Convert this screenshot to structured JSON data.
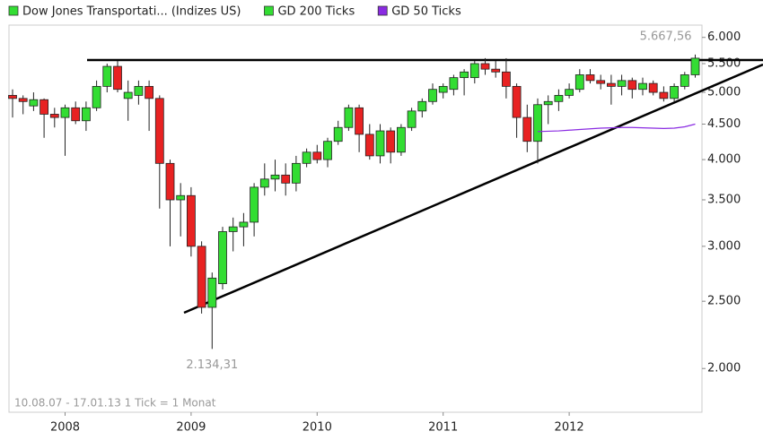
{
  "chart_data": {
    "type": "candlestick",
    "note": "10.08.07 - 17.01.13   1 Tick = 1 Monat",
    "log_scale": true,
    "ylim": [
      1730,
      6250
    ],
    "yticks": [
      {
        "value": 2000,
        "label": "2.000"
      },
      {
        "value": 2500,
        "label": "2.500"
      },
      {
        "value": 3000,
        "label": "3.000"
      },
      {
        "value": 3500,
        "label": "3.500"
      },
      {
        "value": 4000,
        "label": "4.000"
      },
      {
        "value": 4500,
        "label": "4.500"
      },
      {
        "value": 5000,
        "label": "5.000"
      },
      {
        "value": 5500,
        "label": "5.500"
      },
      {
        "value": 6000,
        "label": "6.000"
      }
    ],
    "categories": [
      null,
      null,
      null,
      null,
      null,
      "2008",
      null,
      null,
      null,
      null,
      null,
      null,
      null,
      null,
      null,
      null,
      null,
      "2009",
      null,
      null,
      null,
      null,
      null,
      null,
      null,
      null,
      null,
      null,
      null,
      "2010",
      null,
      null,
      null,
      null,
      null,
      null,
      null,
      null,
      null,
      null,
      null,
      "2011",
      null,
      null,
      null,
      null,
      null,
      null,
      null,
      null,
      null,
      null,
      null,
      "2012",
      null,
      null,
      null,
      null,
      null,
      null,
      null,
      null,
      null,
      null,
      null,
      null
    ],
    "series": [
      {
        "name": "Dow Jones Transportati... (Indizes US)",
        "type": "candlestick",
        "color": "#33dd33",
        "up_color": "#33dd33",
        "down_color": "#e82222",
        "open": [
          4950,
          4900,
          4780,
          4880,
          4650,
          4600,
          4750,
          4550,
          4750,
          5100,
          5450,
          4900,
          4950,
          5100,
          4900,
          3950,
          3500,
          3550,
          3000,
          2450,
          2650,
          3150,
          3200,
          3250,
          3650,
          3750,
          3800,
          3700,
          3950,
          4100,
          4000,
          4250,
          4450,
          4750,
          4350,
          4050,
          4400,
          4100,
          4450,
          4700,
          4850,
          5000,
          5050,
          5250,
          5250,
          5500,
          5400,
          5350,
          5100,
          4600,
          4250,
          4800,
          4850,
          4950,
          5050,
          5300,
          5200,
          5150,
          5100,
          5200,
          5050,
          5150,
          5000,
          4900,
          5100,
          5300
        ],
        "high": [
          5050,
          4950,
          5000,
          4900,
          4750,
          4800,
          4850,
          4850,
          5200,
          5500,
          5550,
          5200,
          5200,
          5200,
          4950,
          4000,
          3700,
          3650,
          3050,
          2750,
          3200,
          3300,
          3350,
          3700,
          3950,
          4000,
          3950,
          4050,
          4150,
          4200,
          4300,
          4550,
          4800,
          4800,
          4500,
          4500,
          4450,
          4500,
          4750,
          4900,
          5150,
          5150,
          5300,
          5400,
          5550,
          5600,
          5550,
          5600,
          5150,
          4800,
          4900,
          4950,
          5050,
          5150,
          5400,
          5400,
          5300,
          5300,
          5300,
          5250,
          5250,
          5200,
          5100,
          5150,
          5350,
          5667.56
        ],
        "low": [
          4600,
          4650,
          4700,
          4300,
          4450,
          4050,
          4500,
          4400,
          4700,
          5000,
          5000,
          4550,
          4800,
          4400,
          3400,
          3000,
          3100,
          2900,
          2400,
          2134.31,
          2600,
          2950,
          3000,
          3100,
          3550,
          3600,
          3550,
          3600,
          3900,
          3950,
          3900,
          4200,
          4400,
          4100,
          4000,
          3950,
          3950,
          4050,
          4400,
          4600,
          4800,
          4900,
          4950,
          4950,
          5150,
          5300,
          5250,
          4900,
          4300,
          4100,
          3950,
          4500,
          4700,
          4900,
          5000,
          5150,
          5050,
          4800,
          4950,
          4900,
          4950,
          4950,
          4850,
          4850,
          5050,
          5250
        ],
        "close": [
          4900,
          4850,
          4880,
          4650,
          4600,
          4750,
          4550,
          4750,
          5100,
          5450,
          5050,
          5000,
          5100,
          4900,
          3950,
          3500,
          3550,
          3000,
          2450,
          2700,
          3150,
          3200,
          3250,
          3650,
          3750,
          3800,
          3700,
          3950,
          4100,
          4000,
          4250,
          4450,
          4750,
          4350,
          4050,
          4400,
          4100,
          4450,
          4700,
          4850,
          5050,
          5100,
          5250,
          5350,
          5500,
          5400,
          5350,
          5100,
          4600,
          4250,
          4800,
          4850,
          4950,
          5050,
          5300,
          5200,
          5150,
          5100,
          5200,
          5050,
          5150,
          5000,
          4900,
          5100,
          5300,
          5600
        ]
      },
      {
        "name": "GD 200 Ticks",
        "type": "line",
        "color": "#33dd33",
        "values": [
          null,
          null,
          null,
          null,
          null,
          null,
          null,
          null,
          null,
          null,
          null,
          null,
          null,
          null,
          null,
          null,
          null,
          null,
          null,
          null,
          null,
          null,
          null,
          null,
          null,
          null,
          null,
          null,
          null,
          null,
          null,
          null,
          null,
          null,
          null,
          null,
          null,
          null,
          null,
          null,
          null,
          null,
          null,
          null,
          null,
          null,
          null,
          null,
          null,
          null,
          null,
          null,
          null,
          null,
          null,
          null,
          null,
          null,
          null,
          null,
          null,
          null,
          null,
          null,
          null,
          null
        ]
      },
      {
        "name": "GD 50 Ticks",
        "type": "line",
        "color": "#8a2be2",
        "values": [
          null,
          null,
          null,
          null,
          null,
          null,
          null,
          null,
          null,
          null,
          null,
          null,
          null,
          null,
          null,
          null,
          null,
          null,
          null,
          null,
          null,
          null,
          null,
          null,
          null,
          null,
          null,
          null,
          null,
          null,
          null,
          null,
          null,
          null,
          null,
          null,
          null,
          null,
          null,
          null,
          null,
          null,
          null,
          null,
          null,
          null,
          null,
          null,
          null,
          null,
          4390,
          4395,
          4400,
          4410,
          4420,
          4430,
          4440,
          4445,
          4450,
          4450,
          4445,
          4440,
          4435,
          4440,
          4460,
          4500
        ]
      }
    ],
    "annotations": [
      {
        "value": 5667.56,
        "label": "5.667,56"
      },
      {
        "value": 2134.31,
        "label": "2.134,31"
      }
    ]
  }
}
